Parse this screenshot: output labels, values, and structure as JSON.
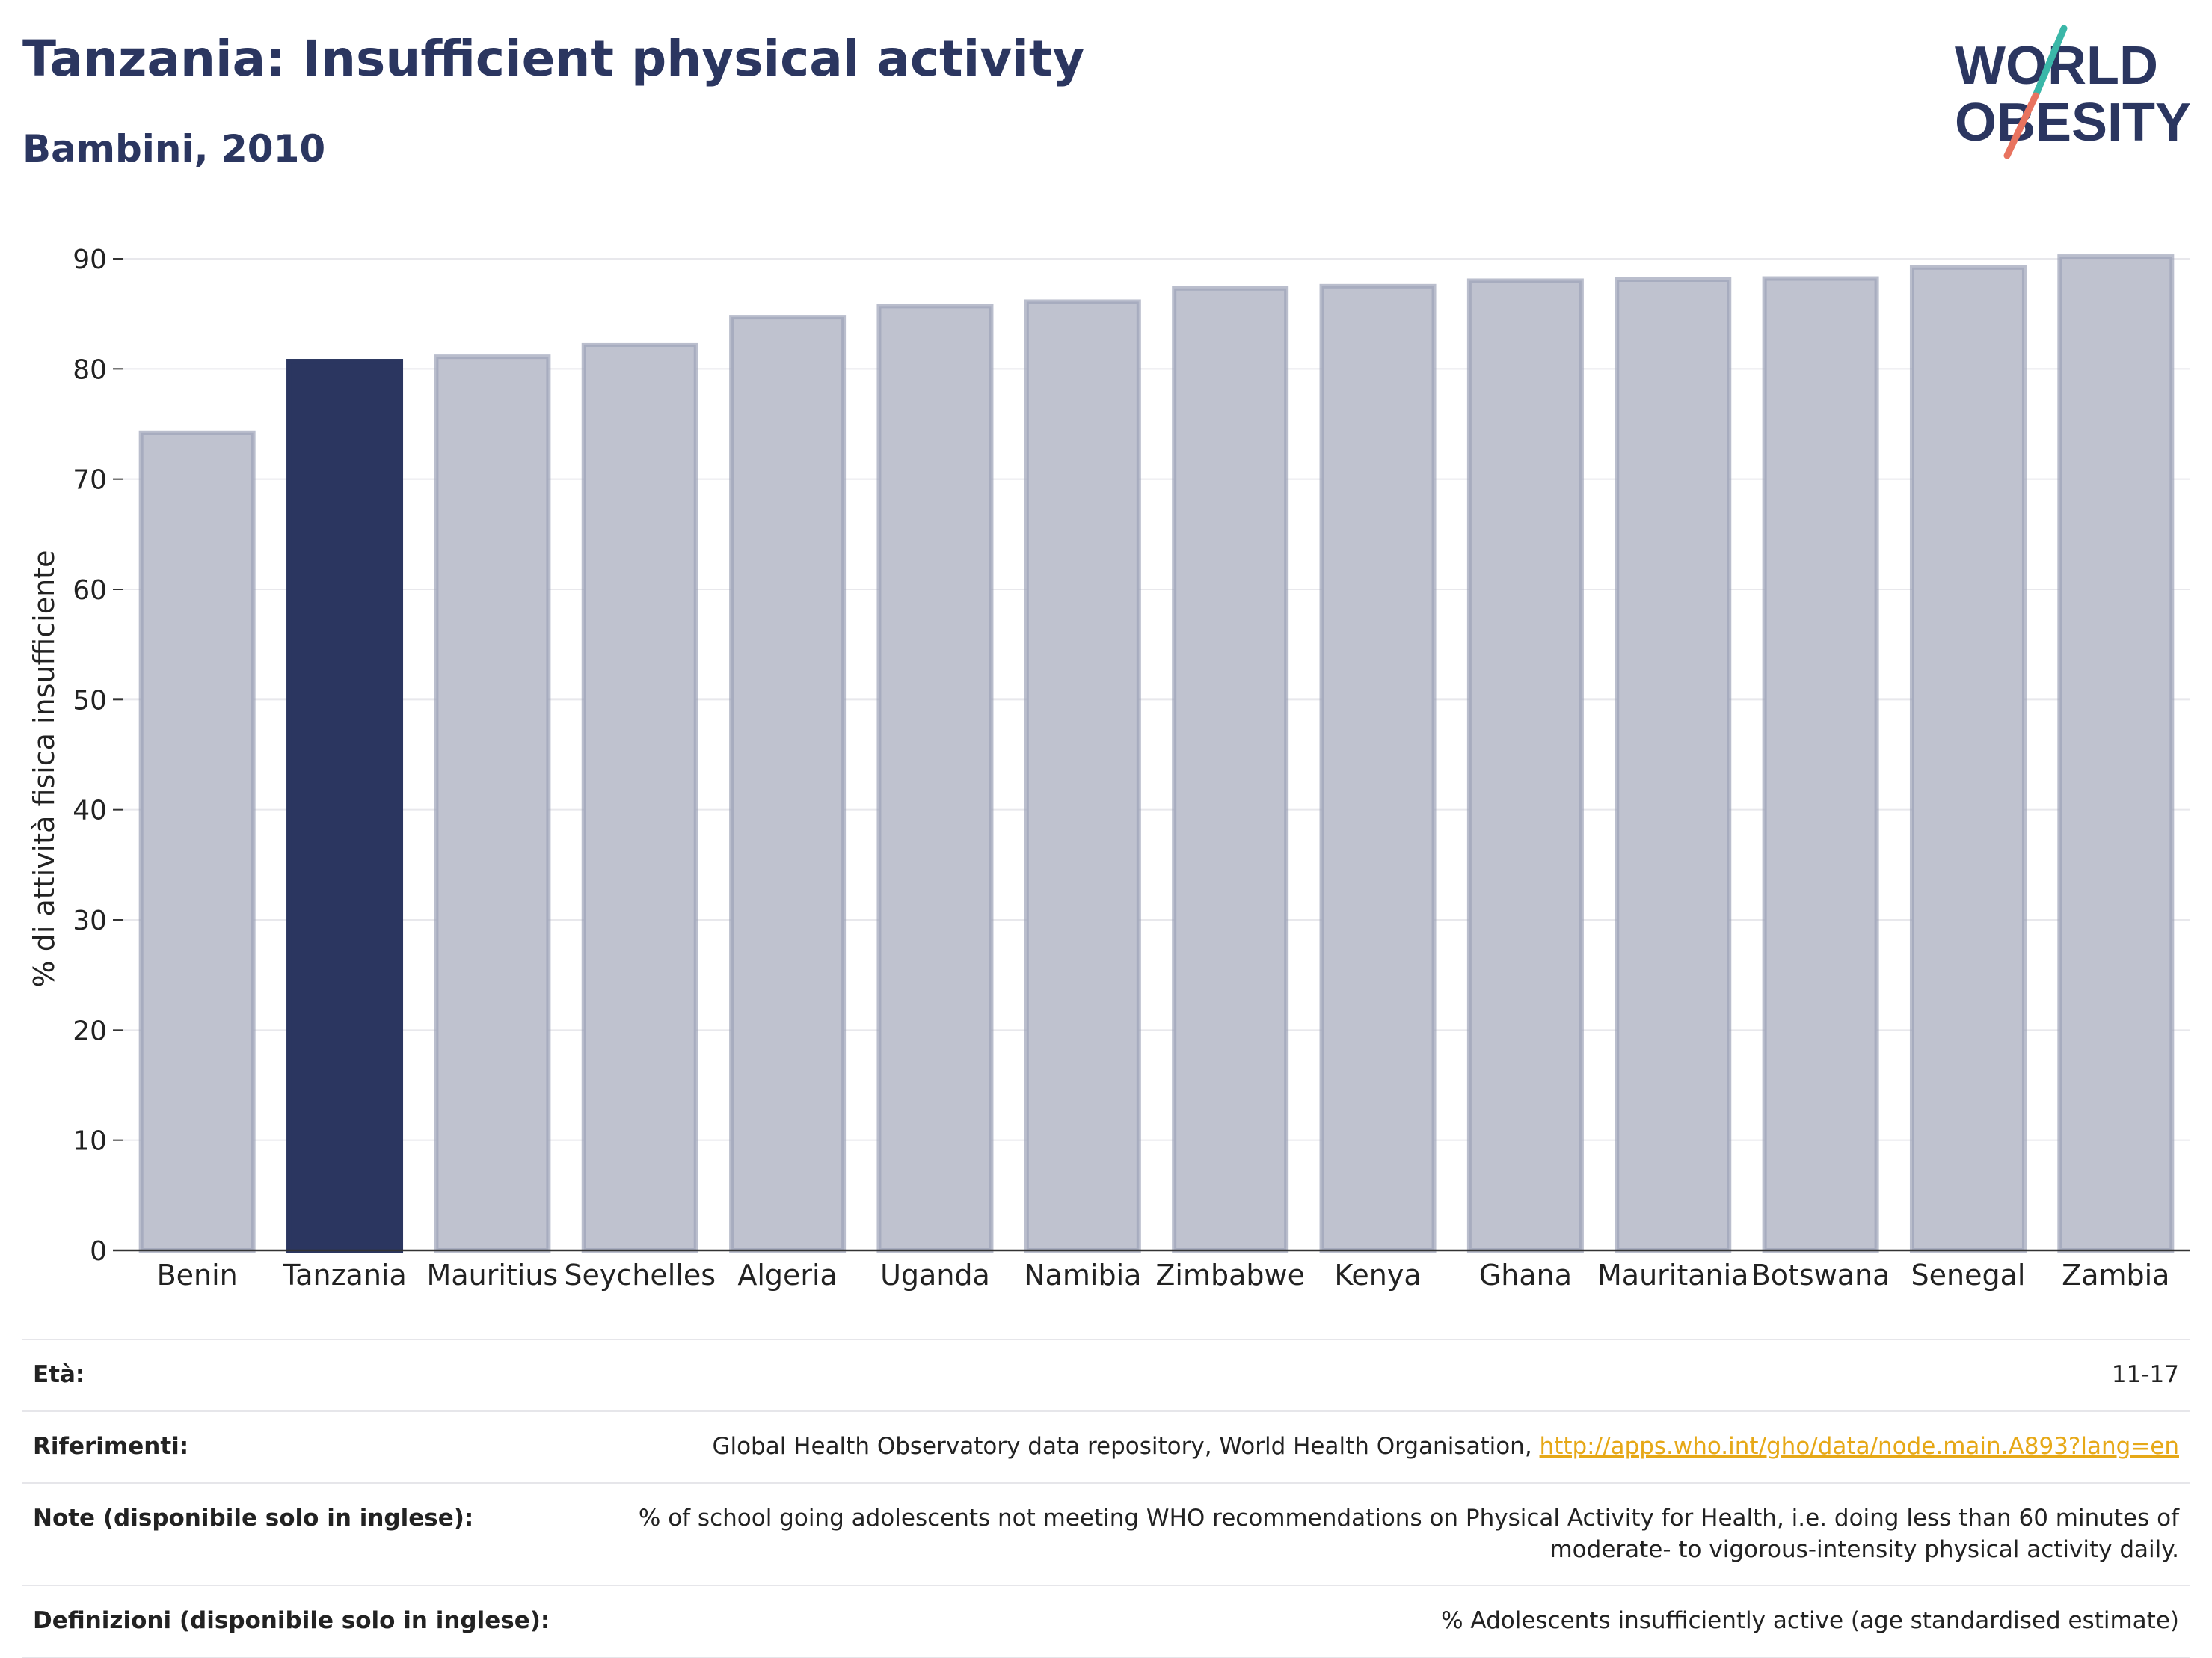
{
  "header": {
    "title": "Tanzania: Insufficient physical activity",
    "subtitle": "Bambini, 2010"
  },
  "logo": {
    "line1": "WORLD",
    "line2": "OBESITY"
  },
  "colors": {
    "highlight": "#2b3660",
    "bar": "#bfc2cf",
    "bar_edge": "#9da2b8",
    "accent_red": "#e8735f",
    "accent_teal": "#3ab7a8"
  },
  "chart_data": {
    "type": "bar",
    "title": "Tanzania: Insufficient physical activity",
    "subtitle": "Bambini, 2010",
    "ylabel": "% di attività fisica insufficiente",
    "xlabel": "",
    "ylim": [
      0,
      90
    ],
    "yticks": [
      0,
      10,
      20,
      30,
      40,
      50,
      60,
      70,
      80,
      90
    ],
    "grid": true,
    "highlight": "Tanzania",
    "categories": [
      "Benin",
      "Tanzania",
      "Mauritius",
      "Seychelles",
      "Algeria",
      "Uganda",
      "Namibia",
      "Zimbabwe",
      "Kenya",
      "Ghana",
      "Mauritania",
      "Botswana",
      "Senegal",
      "Zambia"
    ],
    "values": [
      74.2,
      80.7,
      81.1,
      82.2,
      84.7,
      85.7,
      86.1,
      87.3,
      87.5,
      88.0,
      88.1,
      88.2,
      89.2,
      90.2
    ]
  },
  "info": {
    "age_label": "Età:",
    "age_value": "11-17",
    "refs_label": "Riferimenti:",
    "refs_text": "Global Health Observatory data repository, World Health Organisation, ",
    "refs_link": "http://apps.who.int/gho/data/node.main.A893?lang=en",
    "notes_label": "Note (disponibile solo in inglese):",
    "notes_value": "% of school going adolescents not meeting WHO recommendations on Physical Activity for Health, i.e. doing less than 60 minutes of moderate- to vigorous-intensity physical activity daily.",
    "defs_label": "Definizioni (disponibile solo in inglese):",
    "defs_value": "% Adolescents insufficiently active (age standardised estimate)"
  }
}
